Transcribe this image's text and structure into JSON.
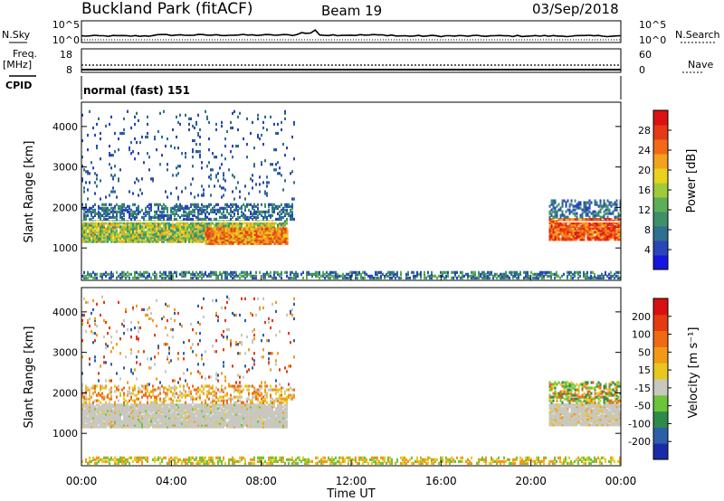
{
  "header": {
    "station": "Buckland Park (fitACF)",
    "beam": "Beam 19",
    "date": "03/Sep/2018"
  },
  "strips": {
    "nsky_label": "N.Sky",
    "nsky_ticks": [
      "10^5",
      "10^0"
    ],
    "nsearch_label": "N.Search",
    "freq_label_line1": "Freq.",
    "freq_label_line2": "[MHz]",
    "freq_ticks": [
      "18",
      "8"
    ],
    "nave_label": "Nave",
    "nave_ticks": [
      "60",
      "0"
    ],
    "cpid_label": "CPID",
    "cpid_value": "normal (fast) 151"
  },
  "chart_data": [
    {
      "type": "heatmap",
      "panel": "power",
      "ylabel": "Slant Range [km]",
      "xlabel": "",
      "x_range_hours": [
        0,
        24
      ],
      "ylim": [
        200,
        4600
      ],
      "yticks": [
        1000,
        2000,
        3000,
        4000
      ],
      "colorbar": {
        "label": "Power [dB]",
        "ticks": [
          "4",
          "8",
          "12",
          "16",
          "20",
          "24",
          "28"
        ],
        "colors": [
          "#1515e0",
          "#2a45b8",
          "#2f6f8f",
          "#3e8f6a",
          "#5cae57",
          "#9fcb3a",
          "#e8d21e",
          "#f4a21c",
          "#f26a18",
          "#e63a14",
          "#dc1111"
        ]
      }
    },
    {
      "type": "heatmap",
      "panel": "velocity",
      "ylabel": "Slant Range [km]",
      "xlabel": "Time UT",
      "x_range_hours": [
        0,
        24
      ],
      "ylim": [
        200,
        4600
      ],
      "yticks": [
        1000,
        2000,
        3000,
        4000
      ],
      "xticks": [
        "00:00",
        "04:00",
        "08:00",
        "12:00",
        "16:00",
        "20:00",
        "00:00"
      ],
      "colorbar": {
        "label": "Velocity [m s⁻¹]",
        "ticks": [
          "200",
          "100",
          "50",
          "15",
          "-15",
          "-50",
          "-100",
          "-200"
        ],
        "colors": [
          "#1a2aa8",
          "#2b5fa8",
          "#2e8a4a",
          "#6cc43a",
          "#c8c8c0",
          "#e8c81e",
          "#f29a18",
          "#f06a16",
          "#e63a12",
          "#d81010"
        ]
      }
    }
  ]
}
